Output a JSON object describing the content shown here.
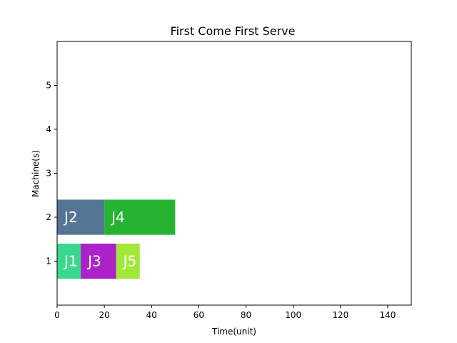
{
  "chart_data": {
    "type": "bar",
    "orientation": "horizontal-gantt",
    "title": "First Come First Serve",
    "xlabel": "Time(unit)",
    "ylabel": "Machine(s)",
    "xlim": [
      0,
      150
    ],
    "ylim": [
      0,
      6
    ],
    "xticks": [
      0,
      20,
      40,
      60,
      80,
      100,
      120,
      140
    ],
    "yticks": [
      1,
      2,
      3,
      4,
      5
    ],
    "grid": false,
    "bar_height": 0.8,
    "tasks": [
      {
        "name": "J1",
        "machine": 1,
        "start": 0,
        "end": 10,
        "color": "#3ad88e"
      },
      {
        "name": "J3",
        "machine": 1,
        "start": 10,
        "end": 25,
        "color": "#ad22c8"
      },
      {
        "name": "J5",
        "machine": 1,
        "start": 25,
        "end": 35,
        "color": "#a2e838"
      },
      {
        "name": "J2",
        "machine": 2,
        "start": 0,
        "end": 20,
        "color": "#557595"
      },
      {
        "name": "J4",
        "machine": 2,
        "start": 20,
        "end": 50,
        "color": "#26b332"
      }
    ]
  }
}
